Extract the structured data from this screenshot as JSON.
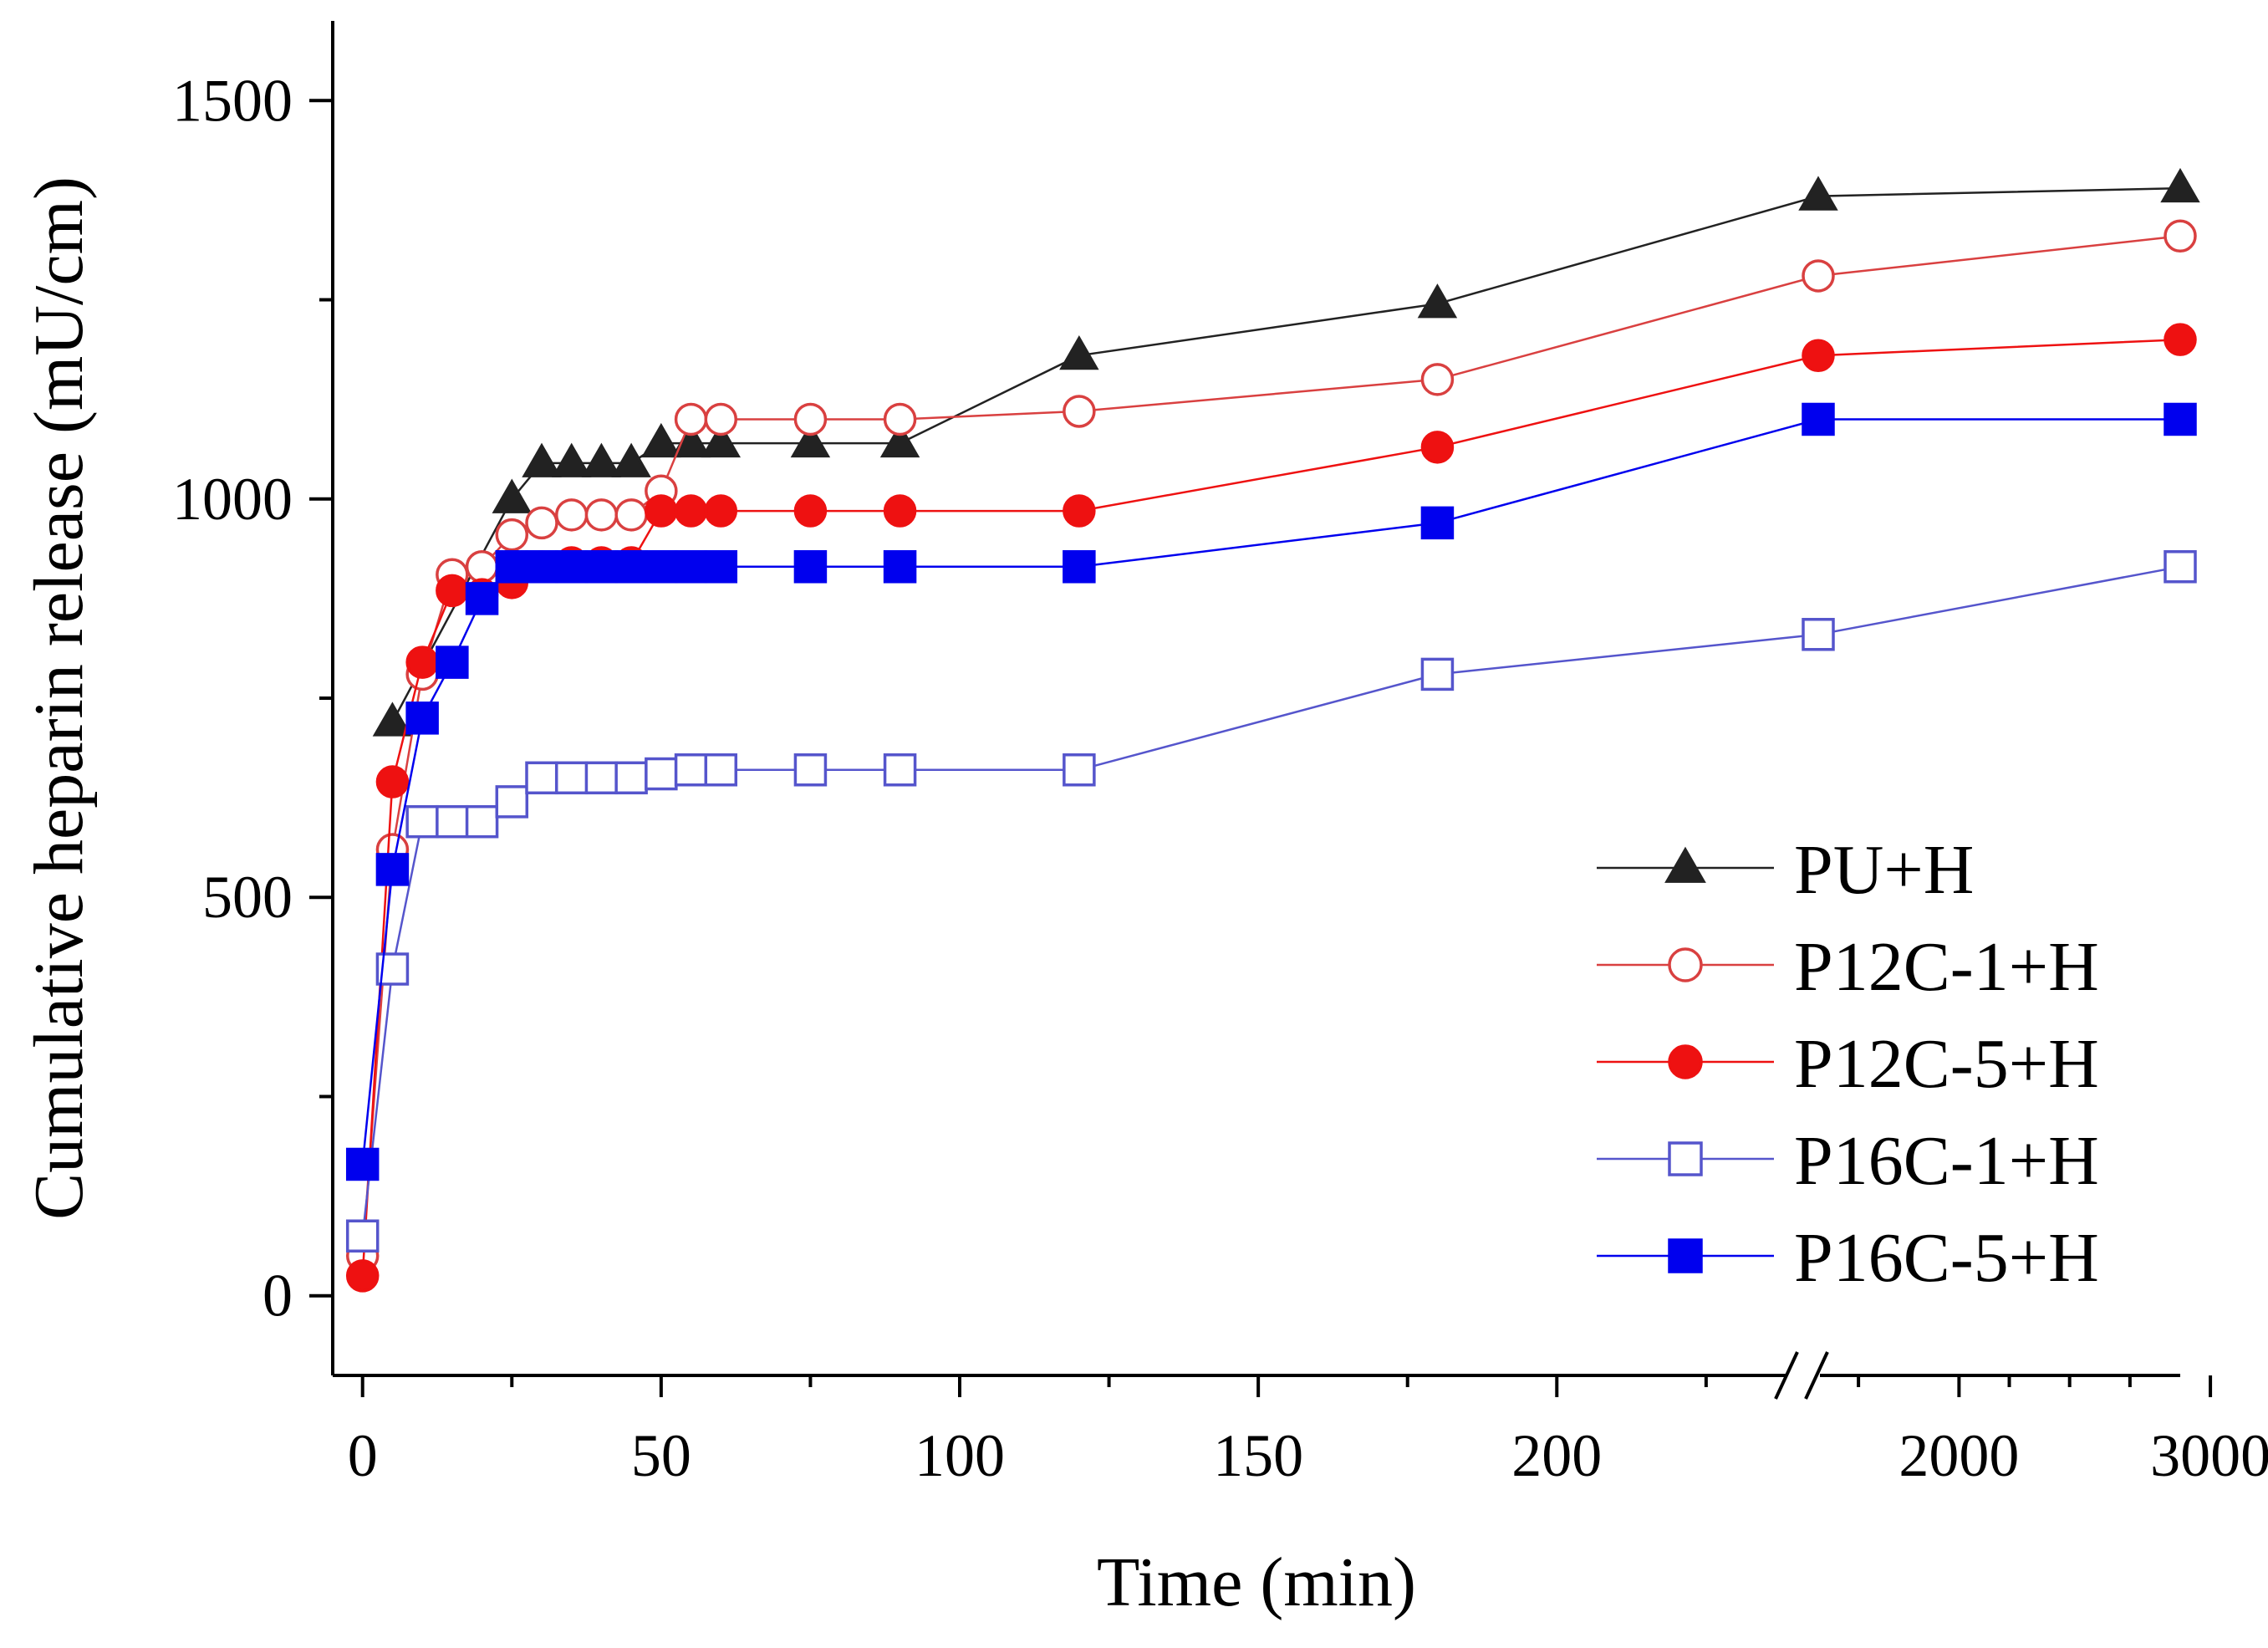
{
  "chart_data": {
    "type": "line",
    "xlabel": "Time (min)",
    "ylabel": "Cumulative heparin release (mU/cm)",
    "ylim": [
      -100,
      1600
    ],
    "x_segments": [
      {
        "range": [
          -5,
          240
        ],
        "ticks": [
          0,
          50,
          100,
          150,
          200
        ]
      },
      {
        "range": [
          1440,
          2880
        ],
        "ticks": [
          2000,
          3000
        ]
      }
    ],
    "x_tick_labels": [
      "0",
      "50",
      "100",
      "150",
      "200",
      "2000",
      "3000"
    ],
    "y_ticks": [
      0,
      500,
      1000,
      1500
    ],
    "y_tick_labels": [
      "0",
      "500",
      "1000",
      "1500"
    ],
    "axis_break": "x",
    "legend_position": "bottom-right",
    "series": [
      {
        "name": "PU+H",
        "color": "#222222",
        "marker": "triangle",
        "filled": true,
        "x": [
          5,
          25,
          30,
          35,
          40,
          45,
          50,
          55,
          60,
          75,
          90,
          120,
          180,
          1440,
          2880
        ],
        "y": [
          720,
          1000,
          1045,
          1045,
          1045,
          1045,
          1070,
          1070,
          1070,
          1070,
          1070,
          1180,
          1245,
          1380,
          1390
        ]
      },
      {
        "name": "P12C-1+H",
        "color": "#d94040",
        "marker": "circle",
        "filled": false,
        "x": [
          0,
          5,
          10,
          15,
          20,
          25,
          30,
          35,
          40,
          45,
          50,
          55,
          60,
          75,
          90,
          120,
          180,
          1440,
          2880
        ],
        "y": [
          50,
          560,
          780,
          905,
          915,
          955,
          970,
          980,
          980,
          980,
          1010,
          1100,
          1100,
          1100,
          1100,
          1110,
          1150,
          1280,
          1330
        ]
      },
      {
        "name": "P12C-5+H",
        "color": "#ee1111",
        "marker": "circle",
        "filled": true,
        "x": [
          0,
          5,
          10,
          15,
          20,
          25,
          30,
          35,
          40,
          45,
          50,
          55,
          60,
          75,
          90,
          120,
          180,
          1440,
          2880
        ],
        "y": [
          25,
          645,
          795,
          885,
          880,
          895,
          915,
          920,
          920,
          920,
          985,
          985,
          985,
          985,
          985,
          985,
          1065,
          1180,
          1200
        ]
      },
      {
        "name": "P16C-1+H",
        "color": "#5555cc",
        "marker": "square",
        "filled": false,
        "x": [
          0,
          5,
          10,
          15,
          20,
          25,
          30,
          35,
          40,
          45,
          50,
          55,
          60,
          75,
          90,
          120,
          180,
          1440,
          2880
        ],
        "y": [
          75,
          410,
          595,
          595,
          595,
          620,
          650,
          650,
          650,
          650,
          655,
          660,
          660,
          660,
          660,
          660,
          780,
          830,
          915
        ]
      },
      {
        "name": "P16C-5+H",
        "color": "#0000ee",
        "marker": "square",
        "filled": true,
        "x": [
          0,
          5,
          10,
          15,
          20,
          25,
          30,
          35,
          40,
          45,
          50,
          55,
          60,
          75,
          90,
          120,
          180,
          1440,
          2880
        ],
        "y": [
          165,
          535,
          725,
          795,
          875,
          915,
          915,
          915,
          915,
          915,
          915,
          915,
          915,
          915,
          915,
          915,
          970,
          1100,
          1100
        ]
      }
    ]
  }
}
